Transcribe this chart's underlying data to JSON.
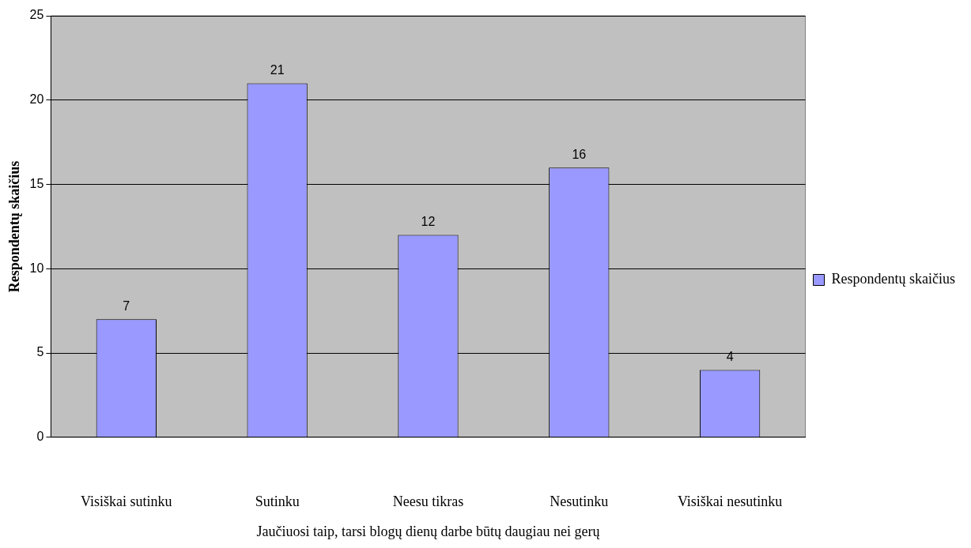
{
  "chart_data": {
    "type": "bar",
    "xlabel": "Jaučiuosi taip, tarsi blogų dienų darbe būtų daugiau nei gerų",
    "ylabel": "Respondentų skaičius",
    "categories": [
      "Visiškai sutinku",
      "Sutinku",
      "Neesu tikras",
      "Nesutinku",
      "Visiškai nesutinku"
    ],
    "series": [
      {
        "name": "Respondentų skaičius",
        "color": "#9999ff",
        "values": [
          7,
          21,
          12,
          16,
          4
        ]
      }
    ],
    "ylim": [
      0,
      25
    ],
    "yticks": [
      0,
      5,
      10,
      15,
      20,
      25
    ],
    "grid": "y",
    "legend": "right",
    "data_labels": true
  }
}
